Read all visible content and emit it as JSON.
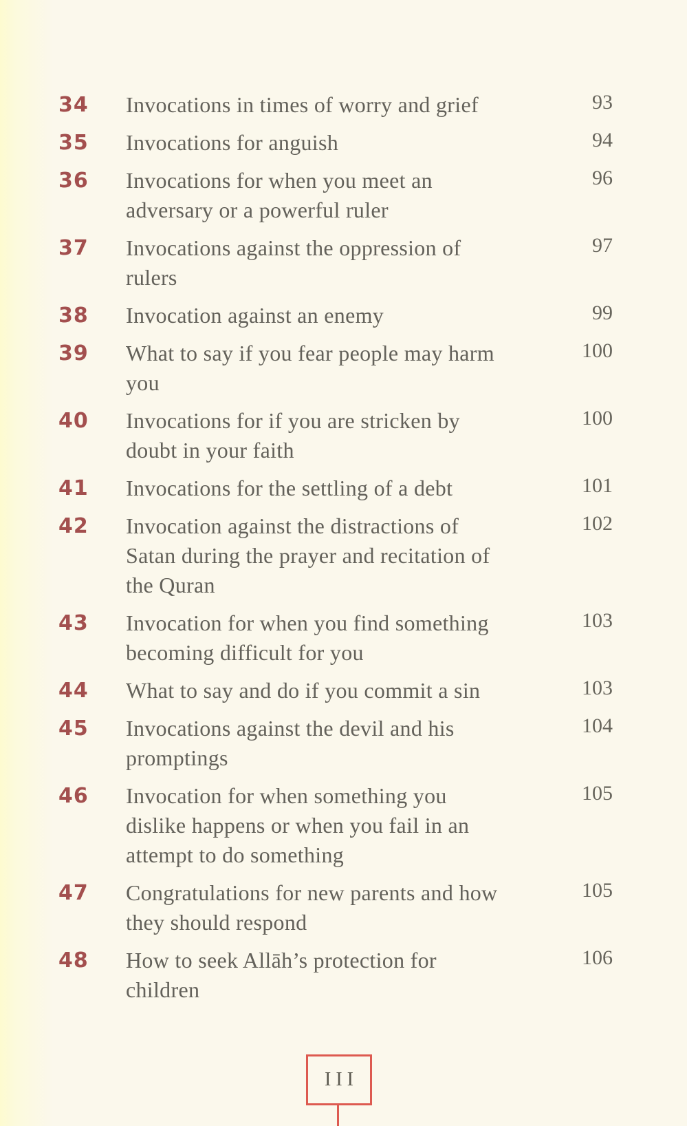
{
  "colors": {
    "page_bg": "#fbf8ec",
    "edge_tint": "#fdfbd0",
    "accent_red": "#dd5a50",
    "entry_number": "#a34f4e",
    "title_text": "#63615a",
    "page_number": "#67655c",
    "folio_text": "#5b594f"
  },
  "toc": {
    "entries": [
      {
        "number": "34",
        "lines": [
          "Invocations in times of worry and grief"
        ],
        "page": "93"
      },
      {
        "number": "35",
        "lines": [
          "Invocations for anguish"
        ],
        "page": "94"
      },
      {
        "number": "36",
        "lines": [
          "Invocations for when you meet an",
          "adversary or a powerful ruler"
        ],
        "page": "96"
      },
      {
        "number": "37",
        "lines": [
          "Invocations against the oppression of",
          "rulers"
        ],
        "page": "97"
      },
      {
        "number": "38",
        "lines": [
          "Invocation against an enemy"
        ],
        "page": "99"
      },
      {
        "number": "39",
        "lines": [
          "What to say if you fear people may harm",
          "you"
        ],
        "page": "100"
      },
      {
        "number": "40",
        "lines": [
          "Invocations for if you are stricken by",
          "doubt in your faith"
        ],
        "page": "100"
      },
      {
        "number": "41",
        "lines": [
          "Invocations for the settling of a debt"
        ],
        "page": "101"
      },
      {
        "number": "42",
        "lines": [
          "Invocation against the distractions of",
          "Satan during the prayer and recitation of",
          "the Quran"
        ],
        "page": "102"
      },
      {
        "number": "43",
        "lines": [
          "Invocation for when you find something",
          "becoming difficult for you"
        ],
        "page": "103"
      },
      {
        "number": "44",
        "lines": [
          "What to say and do if you commit a sin"
        ],
        "page": "103"
      },
      {
        "number": "45",
        "lines": [
          "Invocations against the devil and his",
          "promptings"
        ],
        "page": "104"
      },
      {
        "number": "46",
        "lines": [
          "Invocation for when something you",
          "dislike happens or when you fail in an",
          "attempt to do something"
        ],
        "page": "105"
      },
      {
        "number": "47",
        "lines": [
          "Congratulations for new parents and how",
          "they should respond"
        ],
        "page": "105"
      },
      {
        "number": "48",
        "lines": [
          "How to seek Allāh’s protection for",
          "children"
        ],
        "page": "106"
      }
    ]
  },
  "footer": {
    "page_label": "III"
  }
}
